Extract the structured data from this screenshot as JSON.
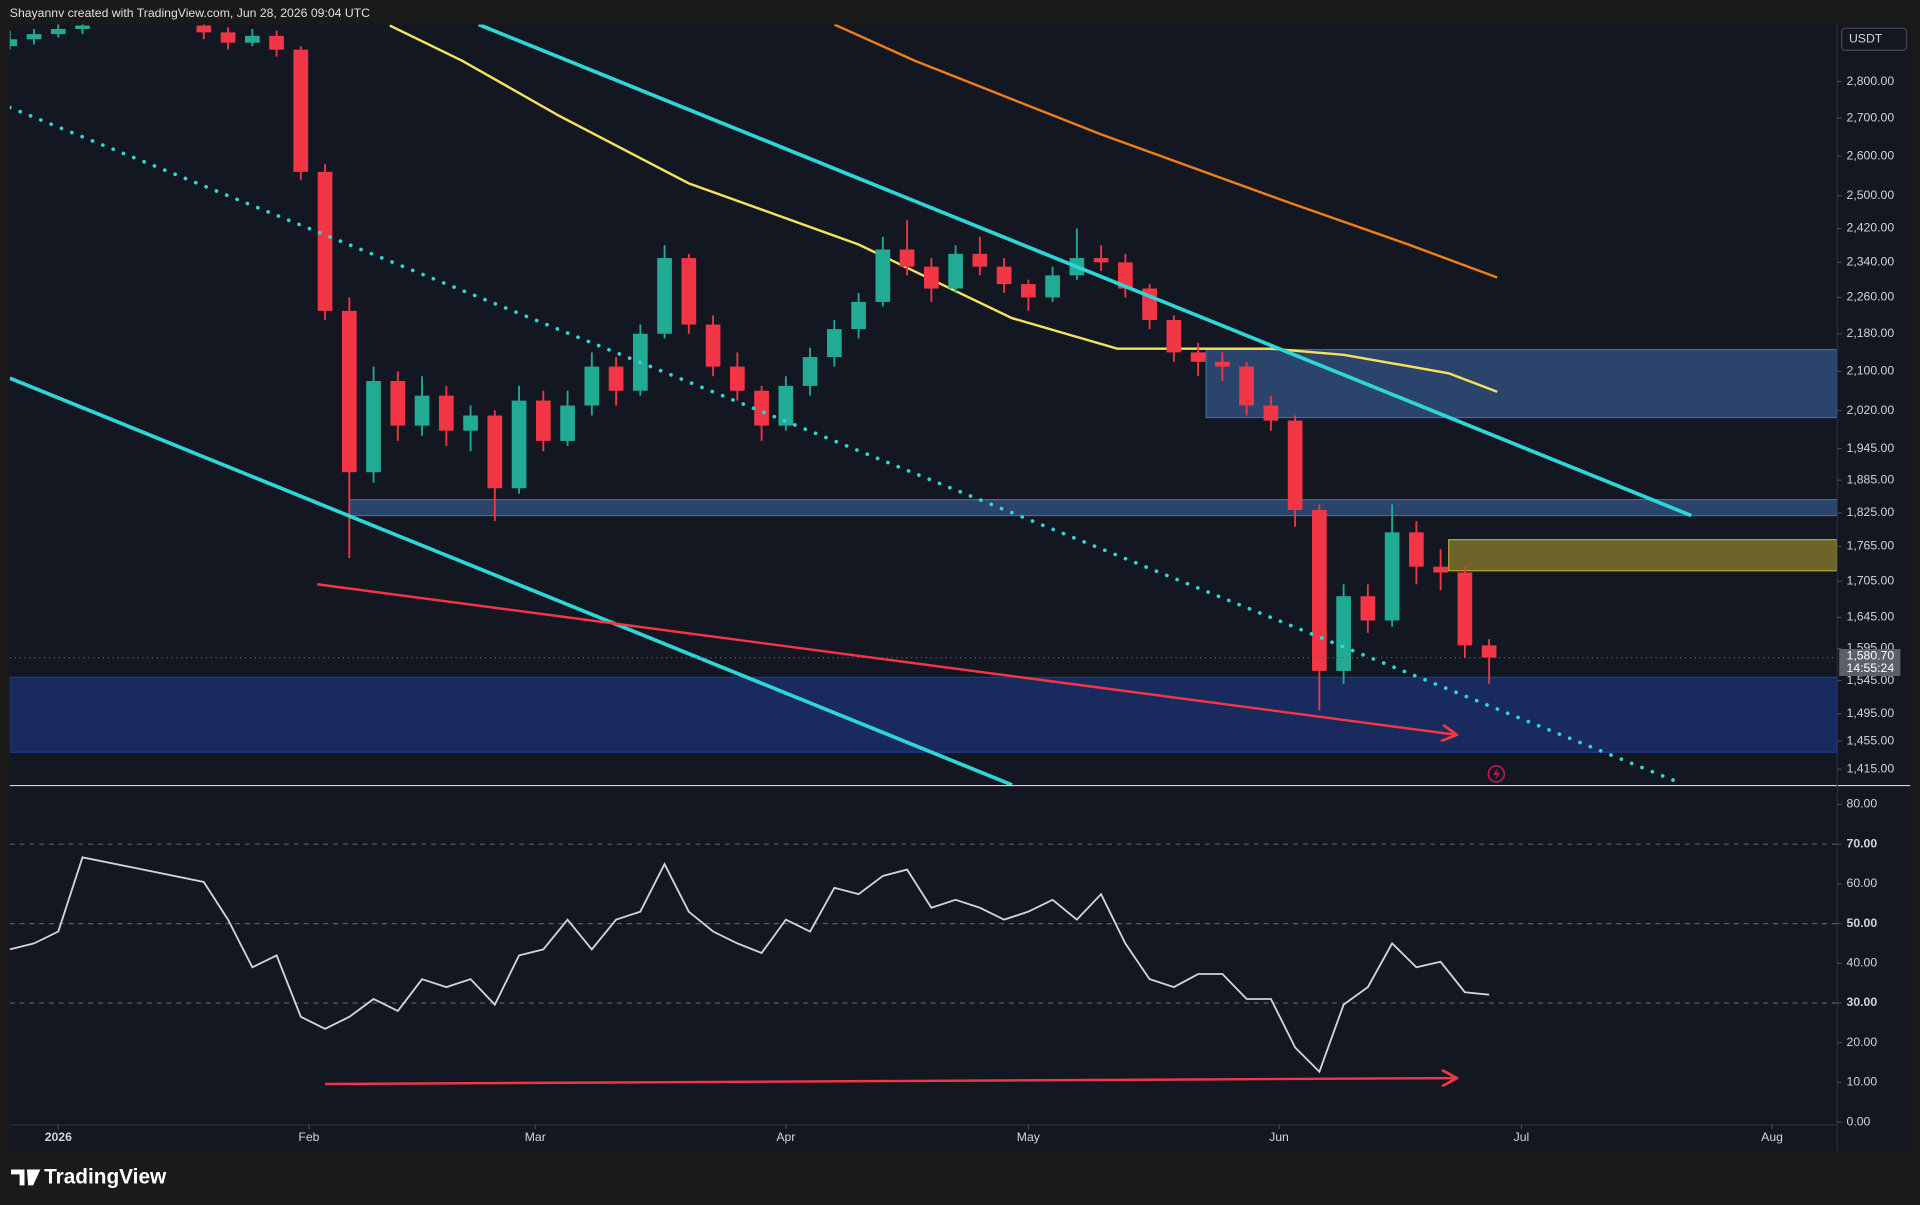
{
  "header": {
    "text": "Shayannv created with TradingView.com, Jun 28, 2026 09:04 UTC"
  },
  "footer": {
    "brand": "TradingView"
  },
  "chart_data": [
    {
      "type": "candlestick",
      "currency": "USDT",
      "log_scale": true,
      "up_color": "#22ab94",
      "down_color": "#f23645",
      "xlim": [
        -6,
        220
      ],
      "ylim": [
        1393,
        2963
      ],
      "yticks": [
        {
          "value": 2800,
          "label": "2,800.00"
        },
        {
          "value": 2700,
          "label": "2,700.00"
        },
        {
          "value": 2600,
          "label": "2,600.00"
        },
        {
          "value": 2500,
          "label": "2,500.00"
        },
        {
          "value": 2420,
          "label": "2,420.00"
        },
        {
          "value": 2340,
          "label": "2,340.00"
        },
        {
          "value": 2260,
          "label": "2,260.00"
        },
        {
          "value": 2180,
          "label": "2,180.00"
        },
        {
          "value": 2100,
          "label": "2,100.00"
        },
        {
          "value": 2020,
          "label": "2,020.00"
        },
        {
          "value": 1945,
          "label": "1,945.00"
        },
        {
          "value": 1885,
          "label": "1,885.00"
        },
        {
          "value": 1825,
          "label": "1,825.00"
        },
        {
          "value": 1765,
          "label": "1,765.00"
        },
        {
          "value": 1705,
          "label": "1,705.00"
        },
        {
          "value": 1645,
          "label": "1,645.00"
        },
        {
          "value": 1595,
          "label": "1,595.00"
        },
        {
          "value": 1545,
          "label": "1,545.00"
        },
        {
          "value": 1495,
          "label": "1,495.00"
        },
        {
          "value": 1455,
          "label": "1,455.00"
        },
        {
          "value": 1415,
          "label": "1,415.00"
        }
      ],
      "last_price": {
        "value": 1580.7,
        "label": "1,580.70"
      },
      "countdown": "14:55:24",
      "last_color": "#5d606b",
      "x": [
        -6,
        -3,
        0,
        3,
        18,
        21,
        24,
        27,
        30,
        33,
        36,
        39,
        42,
        45,
        48,
        51,
        54,
        57,
        60,
        63,
        66,
        69,
        72,
        75,
        78,
        81,
        84,
        87,
        90,
        93,
        96,
        99,
        102,
        105,
        108,
        111,
        114,
        117,
        120,
        123,
        126,
        129,
        132,
        135,
        138,
        141,
        144,
        147,
        150,
        153,
        156,
        159,
        162,
        165,
        168,
        171,
        174,
        177
      ],
      "open": [
        2900,
        2920,
        2935,
        2950,
        2960,
        2940,
        2910,
        2930,
        2890,
        2560,
        2230,
        1900,
        2080,
        1990,
        2050,
        1980,
        2010,
        1870,
        2040,
        1960,
        2030,
        2110,
        2060,
        2180,
        2350,
        2200,
        2110,
        2060,
        1990,
        2070,
        2130,
        2190,
        2250,
        2370,
        2330,
        2280,
        2360,
        2330,
        2290,
        2260,
        2310,
        2350,
        2340,
        2280,
        2210,
        2140,
        2120,
        2110,
        2030,
        2000,
        1830,
        1560,
        1680,
        1640,
        1790,
        1730,
        1720,
        1600
      ],
      "high": [
        2945,
        2950,
        2970,
        2980,
        2975,
        2955,
        2950,
        2945,
        2900,
        2580,
        2260,
        2110,
        2100,
        2090,
        2070,
        2030,
        2020,
        2070,
        2060,
        2060,
        2140,
        2130,
        2200,
        2380,
        2360,
        2220,
        2140,
        2070,
        2090,
        2150,
        2210,
        2270,
        2400,
        2440,
        2350,
        2380,
        2400,
        2350,
        2300,
        2330,
        2420,
        2380,
        2360,
        2290,
        2220,
        2160,
        2140,
        2120,
        2050,
        2010,
        1840,
        1700,
        1700,
        1840,
        1810,
        1760,
        1730,
        1610
      ],
      "low": [
        2890,
        2905,
        2925,
        2935,
        2920,
        2890,
        2900,
        2870,
        2540,
        2210,
        1745,
        1880,
        1960,
        1970,
        1950,
        1940,
        1810,
        1860,
        1940,
        1950,
        2010,
        2030,
        2050,
        2170,
        2180,
        2090,
        2040,
        1960,
        1980,
        2050,
        2110,
        2170,
        2240,
        2310,
        2250,
        2270,
        2310,
        2270,
        2230,
        2250,
        2300,
        2320,
        2260,
        2190,
        2120,
        2090,
        2080,
        2010,
        1980,
        1800,
        1500,
        1540,
        1620,
        1630,
        1700,
        1690,
        1580,
        1540
      ],
      "close": [
        2920,
        2935,
        2950,
        2960,
        2940,
        2910,
        2930,
        2890,
        2560,
        2230,
        1900,
        2080,
        1990,
        2050,
        1980,
        2010,
        1870,
        2040,
        1960,
        2030,
        2110,
        2060,
        2180,
        2350,
        2200,
        2110,
        2060,
        1990,
        2070,
        2130,
        2190,
        2250,
        2370,
        2330,
        2280,
        2360,
        2330,
        2290,
        2260,
        2310,
        2350,
        2340,
        2280,
        2210,
        2140,
        2120,
        2110,
        2030,
        2000,
        1830,
        1560,
        1680,
        1640,
        1790,
        1730,
        1720,
        1600,
        1580.7
      ],
      "zones": [
        {
          "from": 142,
          "to": 220,
          "low": 2006,
          "high": 2146,
          "color": "#3e6aa8"
        },
        {
          "from": 36,
          "to": 220,
          "low": 1820,
          "high": 1849,
          "color": "#3e6aa8"
        },
        {
          "from": 172,
          "to": 220,
          "low": 1723,
          "high": 1777,
          "color": "#b8a432"
        },
        {
          "from": -6,
          "to": 220,
          "low": 1439,
          "high": 1550,
          "color": "#1f3a8f"
        }
      ],
      "moving_averages": [
        {
          "color": "#f5e15c",
          "x": [
            41,
            50,
            62,
            78,
            99,
            118,
            131,
            150,
            159,
            172,
            178
          ],
          "values": [
            2960,
            2858,
            2706,
            2531,
            2382,
            2214,
            2148,
            2148,
            2135,
            2096,
            2058
          ]
        },
        {
          "color": "#ef7d1a",
          "x": [
            96,
            106,
            129,
            152,
            167,
            178
          ],
          "values": [
            2963,
            2858,
            2657,
            2485,
            2382,
            2305
          ]
        }
      ],
      "trendlines": [
        {
          "color": "#2fd6d6",
          "style": "solid",
          "x": [
            52,
            202
          ],
          "values": [
            2963,
            1820
          ]
        },
        {
          "color": "#2fd6d6",
          "style": "solid",
          "x": [
            -6,
            118
          ],
          "values": [
            2086,
            1393
          ]
        },
        {
          "color": "#2fd6d6",
          "style": "dotted",
          "x": [
            -6,
            201
          ],
          "values": [
            2729,
            1394
          ]
        },
        {
          "color": "#f23645",
          "style": "arrow",
          "x": [
            32,
            173
          ],
          "values": [
            1700,
            1464
          ]
        }
      ]
    },
    {
      "type": "line",
      "color": "#d1d4dc",
      "xlim": [
        -6,
        220
      ],
      "ylim": [
        -0.5,
        84.3
      ],
      "xticks": [
        {
          "value": 0,
          "label": "2026"
        },
        {
          "value": 31,
          "label": "Feb"
        },
        {
          "value": 59,
          "label": "Mar"
        },
        {
          "value": 90,
          "label": "Apr"
        },
        {
          "value": 120,
          "label": "May"
        },
        {
          "value": 151,
          "label": "Jun"
        },
        {
          "value": 181,
          "label": "Jul"
        },
        {
          "value": 212,
          "label": "Aug"
        }
      ],
      "yticks": [
        {
          "value": 80,
          "label": "80.00"
        },
        {
          "value": 70,
          "label": "70.00"
        },
        {
          "value": 60,
          "label": "60.00"
        },
        {
          "value": 50,
          "label": "50.00"
        },
        {
          "value": 40,
          "label": "40.00"
        },
        {
          "value": 30,
          "label": "30.00"
        },
        {
          "value": 20,
          "label": "20.00"
        },
        {
          "value": 10,
          "label": "10.00"
        },
        {
          "value": 0,
          "label": "0.00"
        }
      ],
      "levels": [
        70,
        50,
        30
      ],
      "x": [
        -6,
        -3,
        0,
        3,
        18,
        21,
        24,
        27,
        30,
        33,
        36,
        39,
        42,
        45,
        48,
        51,
        54,
        57,
        60,
        63,
        66,
        69,
        72,
        75,
        78,
        81,
        84,
        87,
        90,
        93,
        96,
        99,
        102,
        105,
        108,
        111,
        114,
        117,
        120,
        123,
        126,
        129,
        132,
        135,
        138,
        141,
        144,
        147,
        150,
        153,
        156,
        159,
        162,
        165,
        168,
        171,
        174,
        177
      ],
      "values": [
        43.5,
        45,
        48,
        66.7,
        60.5,
        51,
        39,
        42,
        26.5,
        23.5,
        26.5,
        31,
        28,
        36,
        34,
        36,
        29.6,
        42,
        43.5,
        51,
        43.5,
        51,
        53,
        65,
        53,
        48,
        45,
        42.6,
        51,
        48,
        59,
        57.4,
        62,
        63.6,
        54,
        56,
        54,
        51,
        53,
        56,
        51,
        57.4,
        45,
        36,
        34,
        37.3,
        37.3,
        31,
        31,
        18.8,
        12.7,
        29.6,
        34,
        45,
        39,
        40.4,
        32.7,
        32.1
      ],
      "trendlines": [
        {
          "color": "#f23645",
          "style": "arrow",
          "x": [
            33,
            173
          ],
          "values": [
            9.6,
            11.1
          ]
        }
      ]
    }
  ]
}
